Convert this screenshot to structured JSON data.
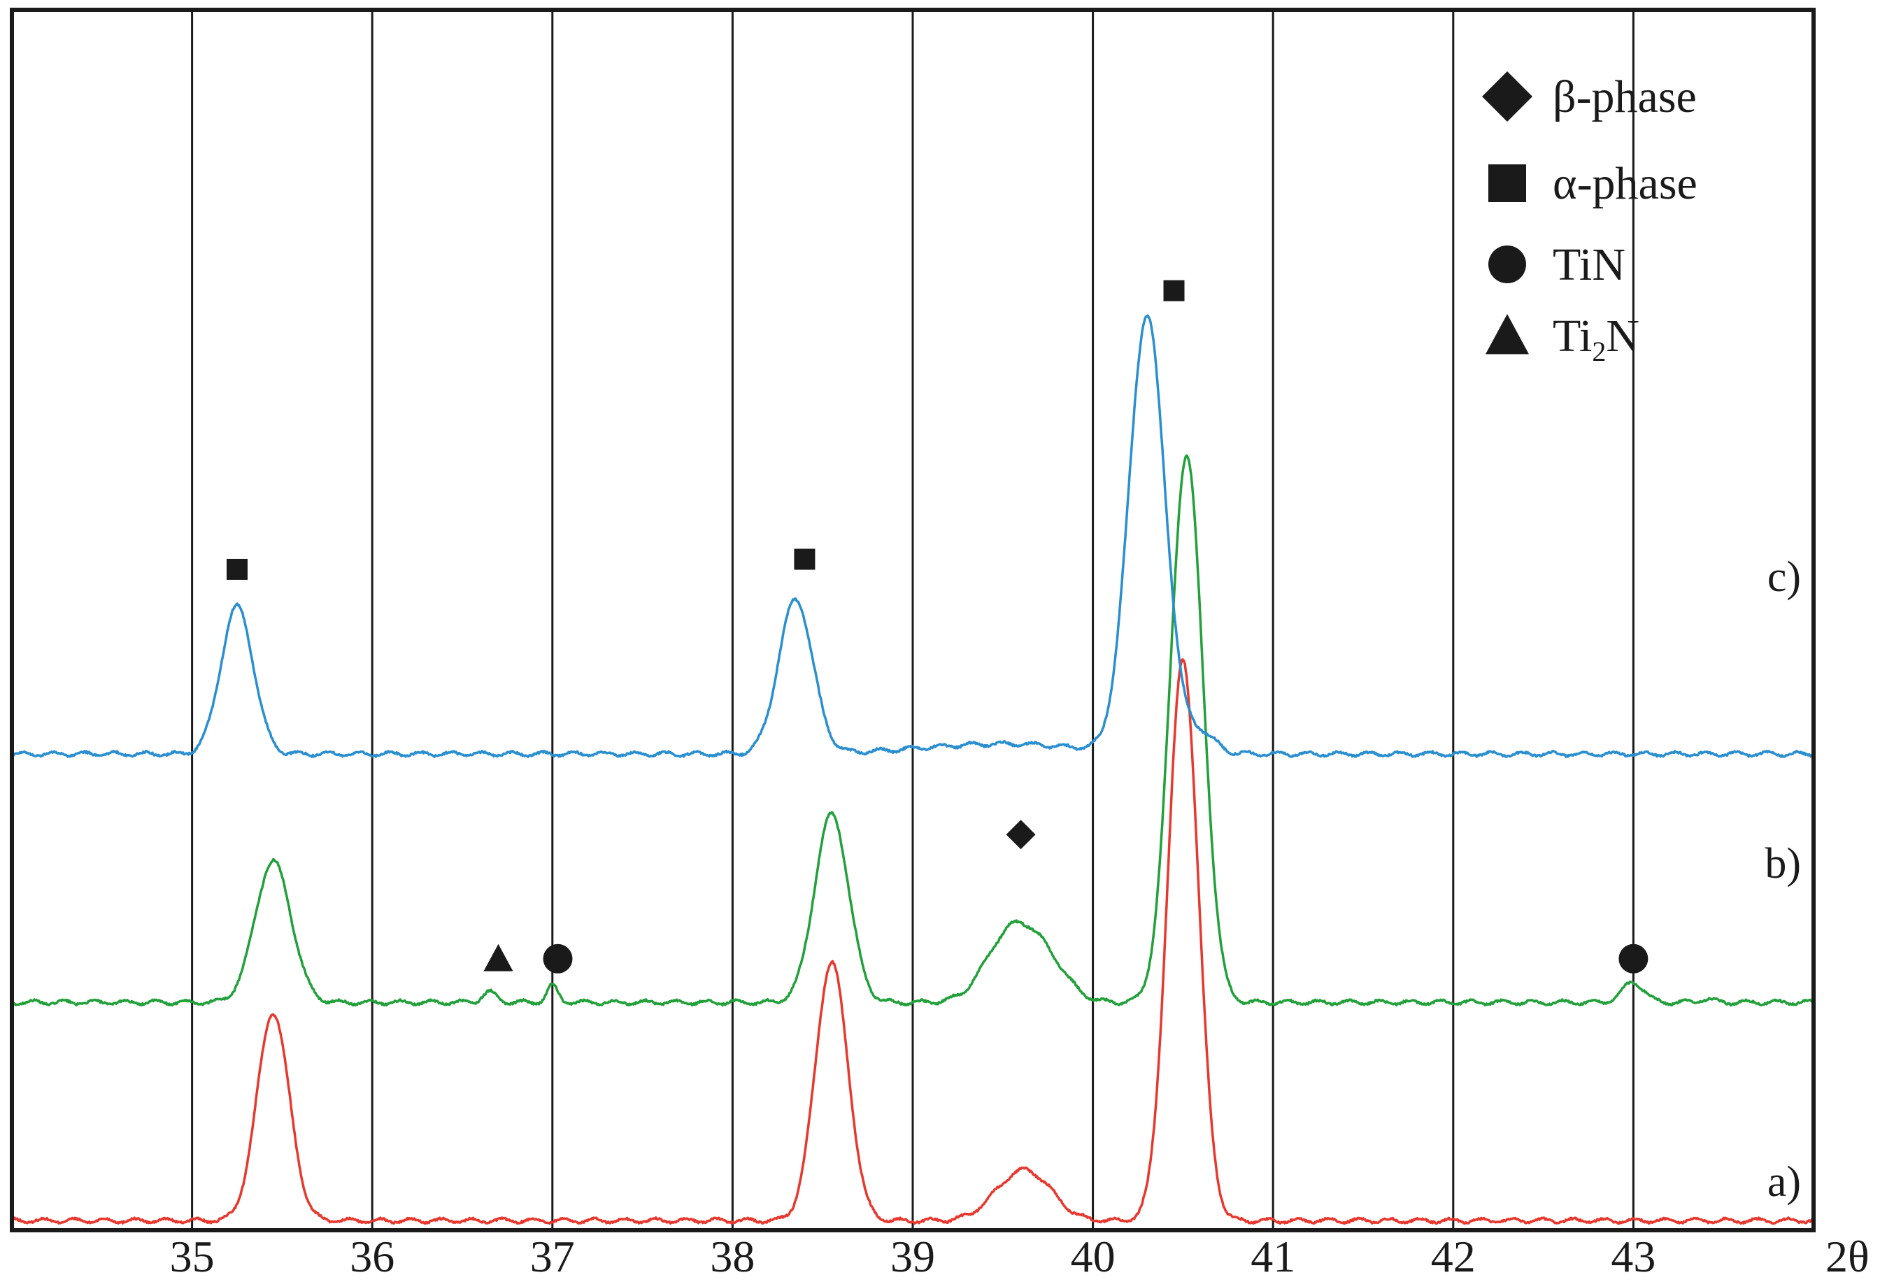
{
  "chart_data": {
    "type": "line",
    "xlabel": "2θ",
    "ylabel": "",
    "xlim": [
      34.0,
      44.0
    ],
    "xticks": [
      "35",
      "36",
      "37",
      "38",
      "39",
      "40",
      "41",
      "42",
      "43"
    ],
    "grid": "vertical",
    "legend_placement": "top-right",
    "legend": [
      {
        "symbol": "diamond",
        "label": "β-phase"
      },
      {
        "symbol": "square",
        "label": "α-phase"
      },
      {
        "symbol": "circle",
        "label": "TiN"
      },
      {
        "symbol": "triangle",
        "label": "Ti2N",
        "label_main": "Ti",
        "label_sub": "2",
        "label_tail": "N"
      }
    ],
    "series": [
      {
        "name": "a)",
        "color": "#e8382e",
        "baseline": 0.01,
        "peaks": [
          {
            "x": 35.45,
            "height": 0.62,
            "width": 0.09
          },
          {
            "x": 38.55,
            "height": 0.77,
            "width": 0.09
          },
          {
            "x": 39.55,
            "height": 0.1,
            "width": 0.13
          },
          {
            "x": 39.7,
            "height": 0.08,
            "width": 0.12
          },
          {
            "x": 40.5,
            "height": 1.67,
            "width": 0.085
          }
        ]
      },
      {
        "name": "b)",
        "color": "#22a03a",
        "baseline": 0.66,
        "peaks": [
          {
            "x": 35.45,
            "height": 0.42,
            "width": 0.1
          },
          {
            "x": 36.65,
            "height": 0.03,
            "width": 0.04
          },
          {
            "x": 37.0,
            "height": 0.05,
            "width": 0.03
          },
          {
            "x": 38.55,
            "height": 0.56,
            "width": 0.095
          },
          {
            "x": 39.55,
            "height": 0.21,
            "width": 0.14
          },
          {
            "x": 39.75,
            "height": 0.09,
            "width": 0.12
          },
          {
            "x": 40.52,
            "height": 1.63,
            "width": 0.09
          },
          {
            "x": 43.0,
            "height": 0.06,
            "width": 0.06
          },
          {
            "x": 43.4,
            "height": 0.01,
            "width": 0.04
          }
        ]
      },
      {
        "name": "c)",
        "color": "#2a8fd0",
        "baseline": 1.4,
        "peaks": [
          {
            "x": 35.25,
            "height": 0.44,
            "width": 0.09
          },
          {
            "x": 38.35,
            "height": 0.46,
            "width": 0.095
          },
          {
            "x": 39.5,
            "height": 0.03,
            "width": 0.45
          },
          {
            "x": 40.3,
            "height": 1.3,
            "width": 0.1
          },
          {
            "x": 40.6,
            "height": 0.06,
            "width": 0.08
          }
        ]
      }
    ],
    "markers": [
      {
        "symbol": "square",
        "x": 35.25,
        "y": 1.95
      },
      {
        "symbol": "square",
        "x": 38.4,
        "y": 1.98
      },
      {
        "symbol": "square",
        "x": 40.45,
        "y": 2.78
      },
      {
        "symbol": "diamond",
        "x": 39.6,
        "y": 1.16
      },
      {
        "symbol": "triangle",
        "x": 36.7,
        "y": 0.79
      },
      {
        "symbol": "circle",
        "x": 37.03,
        "y": 0.79
      },
      {
        "symbol": "circle",
        "x": 43.0,
        "y": 0.79
      }
    ]
  }
}
